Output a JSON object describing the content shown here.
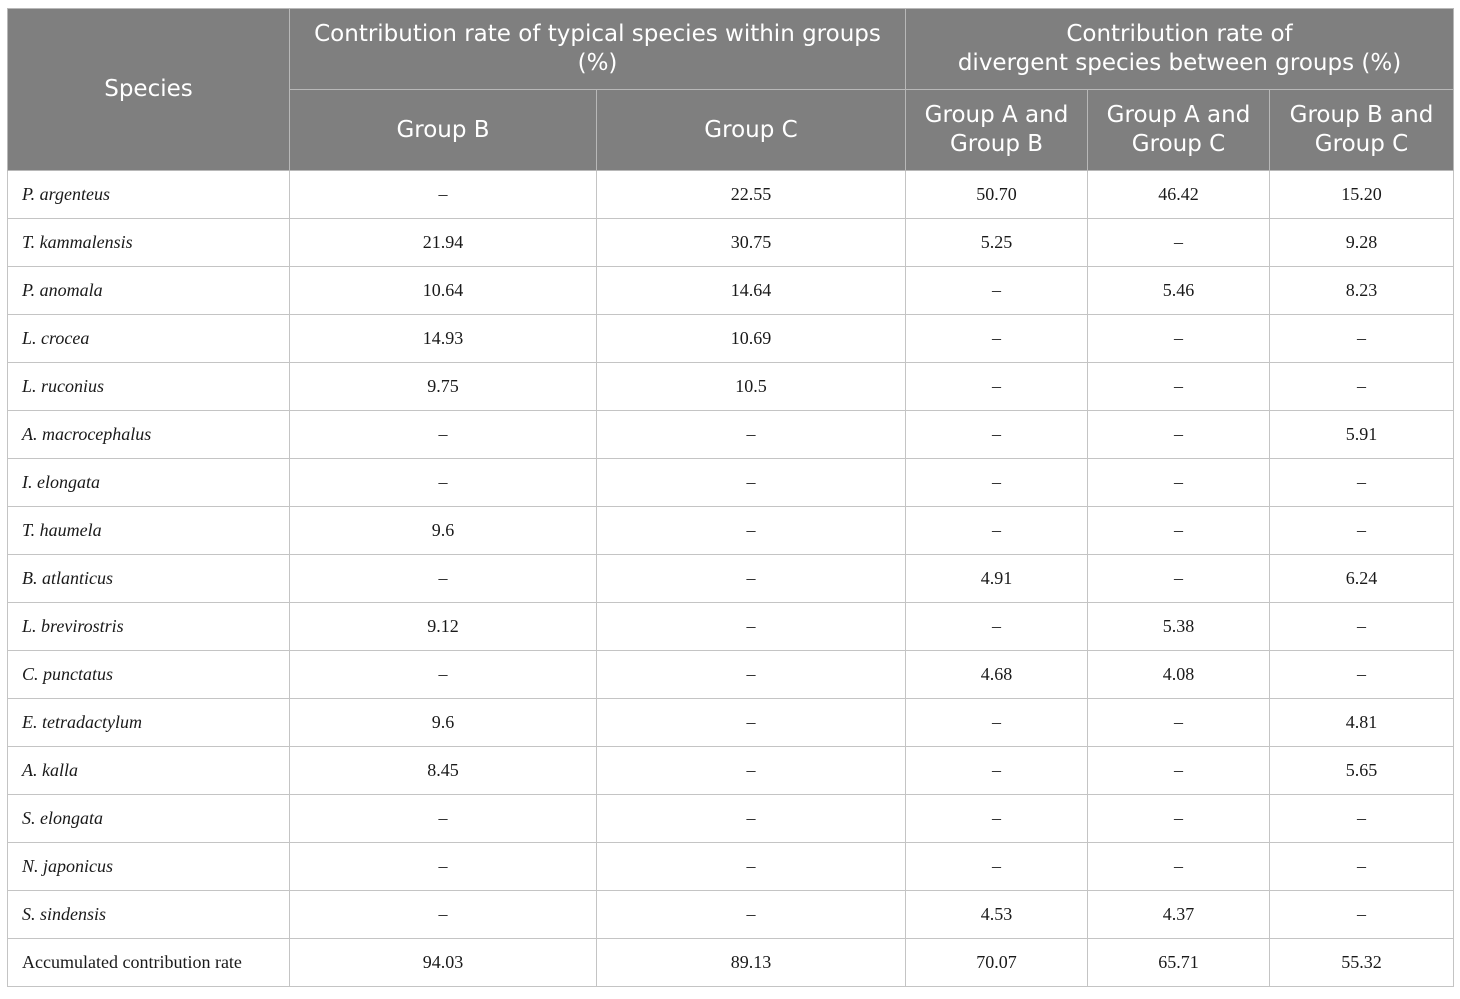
{
  "table": {
    "header": {
      "species": "Species",
      "within_groups": "Contribution rate of typical species within groups (%)",
      "between_groups_line1": "Contribution rate of",
      "between_groups_line2": "divergent species between groups (%)",
      "columns": [
        "Group B",
        "Group C",
        "Group A and Group B",
        "Group A and Group C",
        "Group B and Group C"
      ]
    },
    "rows": [
      {
        "species": "P. argenteus",
        "values": [
          "–",
          "22.55",
          "50.70",
          "46.42",
          "15.20"
        ]
      },
      {
        "species": "T. kammalensis",
        "values": [
          "21.94",
          "30.75",
          "5.25",
          "–",
          "9.28"
        ]
      },
      {
        "species": "P. anomala",
        "values": [
          "10.64",
          "14.64",
          "–",
          "5.46",
          "8.23"
        ]
      },
      {
        "species": "L. crocea",
        "values": [
          "14.93",
          "10.69",
          "–",
          "–",
          "–"
        ]
      },
      {
        "species": "L. ruconius",
        "values": [
          "9.75",
          "10.5",
          "–",
          "–",
          "–"
        ]
      },
      {
        "species": "A. macrocephalus",
        "values": [
          "–",
          "–",
          "–",
          "–",
          "5.91"
        ]
      },
      {
        "species": "I. elongata",
        "values": [
          "–",
          "–",
          "–",
          "–",
          "–"
        ]
      },
      {
        "species": "T. haumela",
        "values": [
          "9.6",
          "–",
          "–",
          "–",
          "–"
        ]
      },
      {
        "species": "B. atlanticus",
        "values": [
          "–",
          "–",
          "4.91",
          "–",
          "6.24"
        ]
      },
      {
        "species": "L. brevirostris",
        "values": [
          "9.12",
          "–",
          "–",
          "5.38",
          "–"
        ]
      },
      {
        "species": "C. punctatus",
        "values": [
          "–",
          "–",
          "4.68",
          "4.08",
          "–"
        ]
      },
      {
        "species": "E. tetradactylum",
        "values": [
          "9.6",
          "–",
          "–",
          "–",
          "4.81"
        ]
      },
      {
        "species": "A. kalla",
        "values": [
          "8.45",
          "–",
          "–",
          "–",
          "5.65"
        ]
      },
      {
        "species": "S. elongata",
        "values": [
          "–",
          "–",
          "–",
          "–",
          "–"
        ]
      },
      {
        "species": "N. japonicus",
        "values": [
          "–",
          "–",
          "–",
          "–",
          "–"
        ]
      },
      {
        "species": "S. sindensis",
        "values": [
          "–",
          "–",
          "4.53",
          "4.37",
          "–"
        ]
      }
    ],
    "total": {
      "label": "Accumulated contribution rate",
      "values": [
        "94.03",
        "89.13",
        "70.07",
        "65.71",
        "55.32"
      ]
    }
  }
}
